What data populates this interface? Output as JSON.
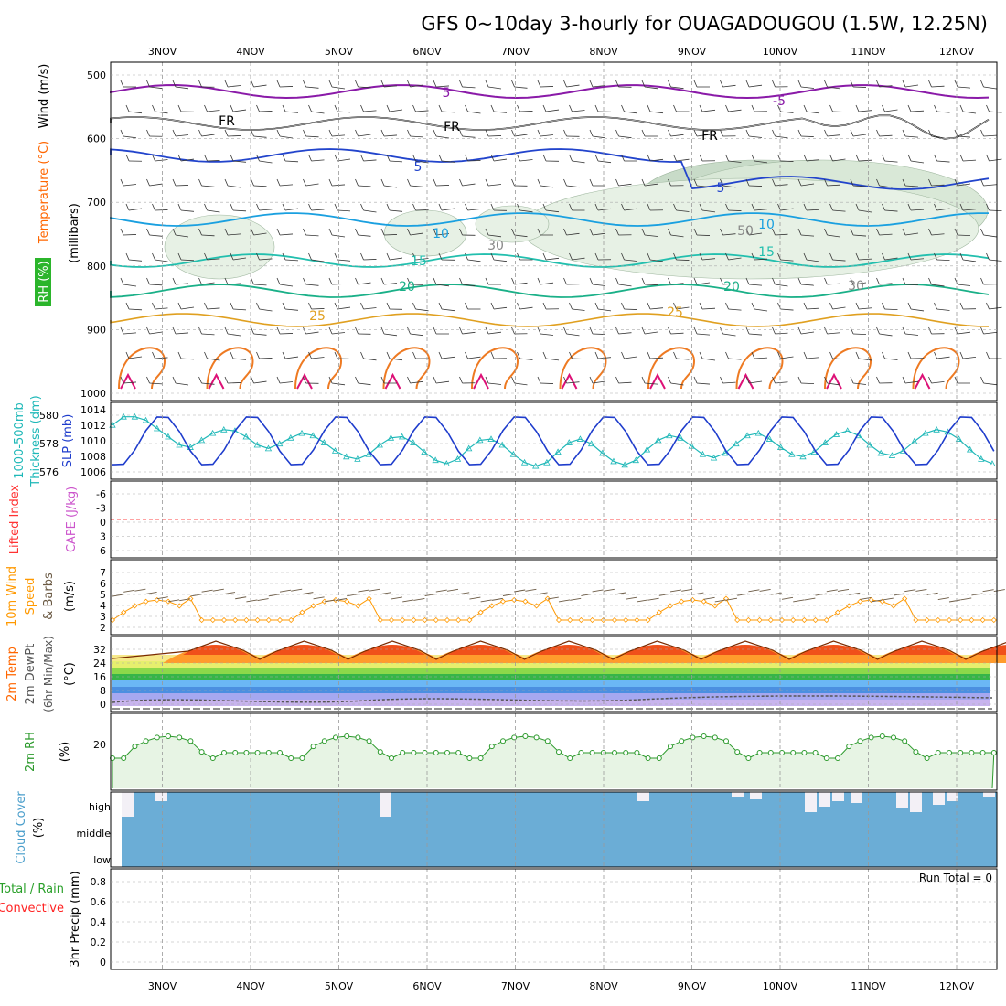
{
  "title": "GFS 0~10day 3-hourly for OUAGADOUGOU (1.5W, 12.25N)",
  "colors": {
    "rh_green": "#2bb52b",
    "temp": "#ff6600",
    "wind": "#000000",
    "thickness": "#1fb8b8",
    "slp": "#1e3ccc",
    "lifted": "#ff3333",
    "cape": "#cc55cc",
    "wind10": "#ff9900",
    "cloud": "#6badd6",
    "precip_total": "#2aa02a",
    "precip_conv": "#ff2222",
    "rh2m": "#2c9a2c"
  },
  "days": [
    "3NOV",
    "4NOV",
    "5NOV",
    "6NOV",
    "7NOV",
    "8NOV",
    "9NOV",
    "10NOV",
    "11NOV",
    "12NOV"
  ],
  "run_total_label": "Run Total = 0",
  "panels": {
    "upper": {
      "label_rh": "RH (%)",
      "label_temp": "Temperature (°C)",
      "label_wind": "Wind (m/s)",
      "label_mb": "(millibars)",
      "ticks": [
        "500",
        "600",
        "700",
        "800",
        "900",
        "1000"
      ],
      "contour_labels": {
        "fr": "FR",
        "m5": "-5",
        "c5": "5",
        "c10": "10",
        "c15": "15",
        "c20": "20",
        "c25": "25",
        "c30": "30",
        "c50": "50"
      }
    },
    "thickness": {
      "label_a": "1000-500mb",
      "label_b": "Thickness (dm)",
      "label_slp": "SLP (mb)",
      "left_ticks": [
        "580",
        "578",
        "576"
      ],
      "right_ticks": [
        "1014",
        "1012",
        "1010",
        "1008",
        "1006"
      ]
    },
    "cape": {
      "label_lifted": "Lifted Index",
      "label_cape": "CAPE (J/kg)",
      "ticks": [
        "-6",
        "-3",
        "0",
        "3",
        "6"
      ]
    },
    "wind10": {
      "label_a": "10m Wind",
      "label_b": "Speed",
      "label_c": "& Barbs",
      "label_unit": "(m/s)",
      "ticks": [
        "7",
        "6",
        "5",
        "4",
        "3",
        "2"
      ]
    },
    "temp2m": {
      "label_a": "2m Temp",
      "label_b": "2m DewPt",
      "label_c": "(6hr Min/Max)",
      "label_unit": "(°C)",
      "ticks": [
        "32",
        "24",
        "16",
        "8",
        "0"
      ]
    },
    "rh2m": {
      "label_a": "2m RH",
      "label_unit": "(%)",
      "ticks": [
        "20"
      ]
    },
    "cloud": {
      "label_a": "Cloud Cover",
      "label_unit": "(%)",
      "levels": [
        "high",
        "middle",
        "low"
      ]
    },
    "precip": {
      "label_a": "Total / Rain",
      "label_b": "Convective",
      "label_c": "3hr Precip (mm)",
      "ticks": [
        "0.8",
        "0.6",
        "0.4",
        "0.2",
        "0"
      ]
    }
  },
  "chart_data": {
    "type": "line",
    "x_start": "2 Nov 12Z",
    "x_step_hours": 3,
    "thickness_dm": [
      579.5,
      580.2,
      580.2,
      579.9,
      579.2,
      578.5,
      577.8,
      577.6,
      578.2,
      578.8,
      579.1,
      579.0,
      578.5,
      577.8,
      577.5,
      577.9,
      578.4,
      578.8,
      578.6,
      578.0,
      577.3,
      576.8,
      576.6,
      577.0,
      577.8,
      578.4,
      578.5,
      578.0,
      577.2,
      576.5,
      576.2,
      576.6,
      577.5,
      578.2,
      578.3,
      577.8,
      577.0,
      576.3,
      576.0,
      576.3,
      577.2,
      578.0,
      578.3,
      577.9,
      577.1,
      576.4,
      576.1,
      576.5,
      577.4,
      578.2,
      578.6,
      578.4,
      577.7,
      577.0,
      576.7,
      577.1,
      577.9,
      578.6,
      578.8,
      578.3,
      577.6,
      577.0,
      576.8,
      577.2,
      578.0,
      578.7,
      579.0,
      578.6,
      577.8,
      577.1,
      576.9,
      577.3,
      578.1,
      578.8,
      579.1,
      578.9,
      578.3,
      577.4,
      576.6,
      576.2
    ]
  }
}
